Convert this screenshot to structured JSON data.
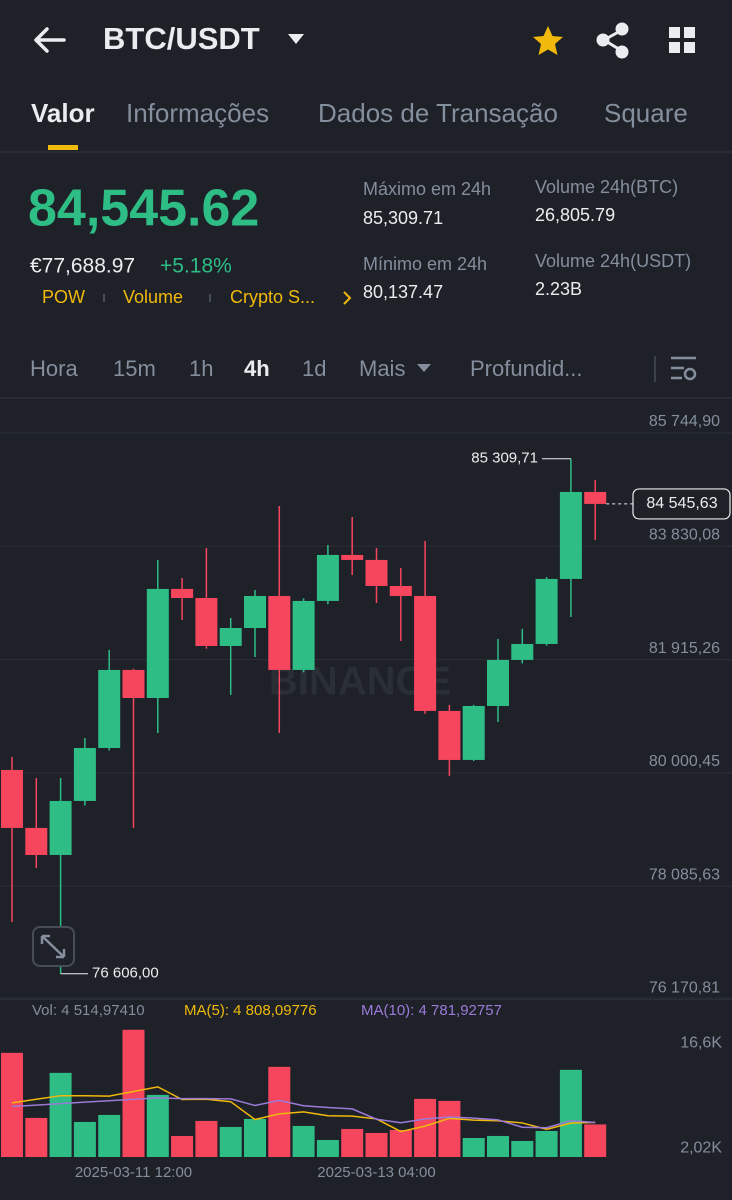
{
  "header": {
    "title": "BTC/USDT"
  },
  "tabs": [
    "Valor",
    "Informações",
    "Dados de Transação",
    "Square"
  ],
  "price": {
    "last": "84,545.62",
    "fiat": "€77,688.97",
    "change": "+5.18%"
  },
  "tags": [
    "POW",
    "Volume",
    "Crypto S..."
  ],
  "stats": [
    {
      "label": "Máximo em 24h",
      "value": "85,309.71"
    },
    {
      "label": "Mínimo em 24h",
      "value": "80,137.47"
    },
    {
      "label": "Volume 24h(BTC)",
      "value": "26,805.79"
    },
    {
      "label": "Volume 24h(USDT)",
      "value": "2.23B"
    }
  ],
  "intervals": [
    "Hora",
    "15m",
    "1h",
    "4h",
    "1d",
    "Mais",
    "Profundid..."
  ],
  "watermark": "BINANCE",
  "chart_data": [
    {
      "type": "candlestick",
      "categories": [
        null,
        null,
        null,
        null,
        null,
        "2025-03-11 12:00",
        null,
        null,
        null,
        null,
        null,
        null,
        null,
        null,
        null,
        "2025-03-13 04:00",
        null,
        null,
        null,
        null,
        null,
        null,
        null,
        null,
        null
      ],
      "open": [
        80050,
        79070,
        78613,
        79526,
        80421,
        81740,
        81266,
        83109,
        82956,
        82145,
        82449,
        82990,
        81740,
        82906,
        83683,
        83599,
        83159,
        82990,
        81047,
        80219,
        81131,
        81909,
        82179,
        83278,
        84748
      ],
      "high": [
        80270,
        79914,
        79914,
        80590,
        82078,
        81760,
        83599,
        83294,
        83801,
        82618,
        83092,
        84511,
        82950,
        83852,
        84325,
        83801,
        83463,
        83920,
        81150,
        81150,
        82264,
        82433,
        83310,
        85309.71,
        84951
      ],
      "low": [
        77481,
        78393,
        76606,
        79450,
        80380,
        79070,
        80675,
        82585,
        82100,
        81317,
        81959,
        80675,
        81700,
        82850,
        83345,
        82872,
        82230,
        81000,
        79948,
        80200,
        80861,
        81850,
        82150,
        82635,
        83937
      ],
      "close": [
        79070,
        78613,
        79526,
        80421,
        81740,
        81266,
        83109,
        82956,
        82145,
        82449,
        82990,
        81740,
        82906,
        83683,
        83599,
        83159,
        82990,
        81047,
        80219,
        81131,
        81909,
        82179,
        83278,
        84748,
        84545.63
      ],
      "up_color": "#2ebd85",
      "down_color": "#f6465d",
      "ylim": [
        76162,
        86302
      ],
      "yticks": [
        {
          "value": 85744.9,
          "label": "85 744,90"
        },
        {
          "value": 83830.08,
          "label": "83 830,08"
        },
        {
          "value": 81915.26,
          "label": "81 915,26"
        },
        {
          "value": 80000.45,
          "label": "80 000,45"
        },
        {
          "value": 78085.63,
          "label": "78 085,63"
        },
        {
          "value": 76170.81,
          "label": "76 170,81"
        }
      ],
      "grid": true,
      "high_label": {
        "value": 85309.71,
        "label": "85 309,71"
      },
      "low_label": {
        "value": 76606,
        "label": "76 606,00"
      },
      "last_label": {
        "value": 84545.63,
        "label": "84 545,63"
      }
    },
    {
      "type": "bar",
      "vol_label": "Vol: 4 514,97410",
      "values": [
        14444,
        5417,
        11667,
        4861,
        5833,
        17639,
        8611,
        2917,
        5000,
        4167,
        5278,
        12500,
        4306,
        2361,
        3889,
        3333,
        3750,
        8056,
        7778,
        2639,
        2917,
        2222,
        3611,
        12083,
        4514.9741
      ],
      "ylim": [
        0,
        18300
      ],
      "yticks": [
        {
          "value": 16600,
          "label": "16,6K"
        },
        {
          "value": 2020,
          "label": "2,02K"
        }
      ],
      "series": [
        {
          "label": "MA(5): 4 808,09776",
          "color": "#f0b90b",
          "values": [
            7500,
            8000,
            8500,
            8500,
            8444,
            9083,
            9722,
            7972,
            8000,
            7667,
            5195,
            5972,
            6250,
            5722,
            5667,
            5278,
            3528,
            4278,
            5361,
            5111,
            5028,
            4722,
            3833,
            4694,
            4808.09776
          ]
        },
        {
          "label": "MA(10): 4 781,92757",
          "color": "#9c7ad8",
          "values": [
            7000,
            7200,
            7400,
            7600,
            7800,
            8000,
            8200,
            8100,
            8100,
            8056,
            7139,
            7847,
            7111,
            6861,
            6667,
            5236,
            4750,
            5264,
            5542,
            5389,
            5153,
            4125,
            4056,
            5028,
            4781.92757
          ]
        }
      ]
    }
  ]
}
